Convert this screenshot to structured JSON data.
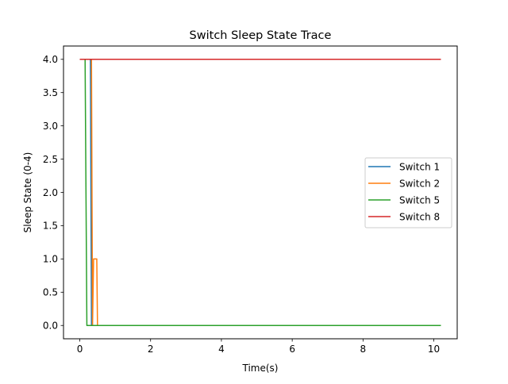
{
  "chart_data": {
    "type": "line",
    "title": "Switch Sleep State Trace",
    "xlabel": "Time(s)",
    "ylabel": "Sleep State (0-4)",
    "xlim": [
      -0.46,
      10.66
    ],
    "ylim": [
      -0.2,
      4.2
    ],
    "xticks": [
      0,
      2,
      4,
      6,
      8,
      10
    ],
    "yticks": [
      0.0,
      0.5,
      1.0,
      1.5,
      2.0,
      2.5,
      3.0,
      3.5,
      4.0
    ],
    "xtick_labels": [
      "0",
      "2",
      "4",
      "6",
      "8",
      "10"
    ],
    "ytick_labels": [
      "0.0",
      "0.5",
      "1.0",
      "1.5",
      "2.0",
      "2.5",
      "3.0",
      "3.5",
      "4.0"
    ],
    "grid": false,
    "legend_position": "center-right",
    "series": [
      {
        "name": "Switch 1",
        "color": "#1f77b4",
        "x": [
          0.0,
          0.3,
          0.33,
          10.2
        ],
        "y": [
          4,
          4,
          0,
          0
        ]
      },
      {
        "name": "Switch 2",
        "color": "#ff7f0e",
        "x": [
          0.0,
          0.33,
          0.36,
          0.39,
          0.48,
          0.5,
          10.2
        ],
        "y": [
          4,
          4,
          0,
          1,
          1,
          0,
          0
        ]
      },
      {
        "name": "Switch 5",
        "color": "#2ca02c",
        "x": [
          0.0,
          0.15,
          0.2,
          10.2
        ],
        "y": [
          4,
          4,
          0,
          0
        ]
      },
      {
        "name": "Switch 8",
        "color": "#d62728",
        "x": [
          0.0,
          10.2
        ],
        "y": [
          4,
          4
        ]
      }
    ]
  }
}
